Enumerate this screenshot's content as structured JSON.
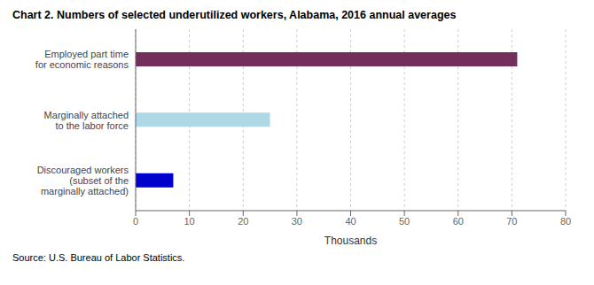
{
  "chart_data": {
    "type": "bar",
    "orientation": "horizontal",
    "title": "Chart 2. Numbers of selected underutilized workers, Alabama, 2016 annual averages",
    "categories": [
      "Discouraged workers\n(subset of the\nmarginally attached)",
      "Marginally attached\nto the labor force",
      "Employed part time\nfor economic reasons"
    ],
    "values": [
      7,
      25,
      71
    ],
    "colors": [
      "#0000CC",
      "#ADD8E6",
      "#722F5B"
    ],
    "xlabel": "Thousands",
    "xlim": [
      0,
      80
    ],
    "xticks": [
      0,
      10,
      20,
      30,
      40,
      50,
      60,
      70,
      80
    ],
    "grid": true,
    "annotations": [
      "Source: U.S. Bureau of Labor Statistics."
    ]
  }
}
